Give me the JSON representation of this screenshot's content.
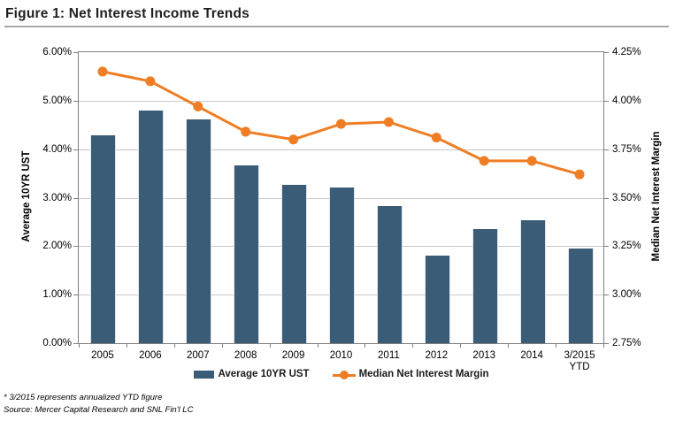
{
  "header": {
    "title": "Figure 1: Net Interest Income Trends"
  },
  "legend": {
    "bar_label": "Average 10YR UST",
    "line_label": "Median Net Interest Margin"
  },
  "footnotes": {
    "note": "* 3/2015 represents annualized YTD figure",
    "source": "Source: Mercer Capital Research and SNL Fin'l LC"
  },
  "colors": {
    "bar": "#3b5c77",
    "line": "#ef7d23",
    "gridline": "#c9c9c9",
    "axis": "#7f7f7f"
  },
  "chart_data": {
    "type": "bar",
    "subtype": "combo-bar-line-dual-axis",
    "title": "Figure 1: Net Interest Income Trends",
    "categories": [
      "2005",
      "2006",
      "2007",
      "2008",
      "2009",
      "2010",
      "2011",
      "2012",
      "2013",
      "2014",
      "3/2015\nYTD"
    ],
    "series": [
      {
        "name": "Average 10YR UST",
        "type": "bar",
        "axis": "left",
        "color": "#3b5c77",
        "values": [
          4.29,
          4.79,
          4.62,
          3.67,
          3.26,
          3.21,
          2.82,
          1.81,
          2.35,
          2.54,
          1.96
        ]
      },
      {
        "name": "Median Net Interest Margin",
        "type": "line",
        "axis": "right",
        "color": "#ef7d23",
        "values": [
          4.15,
          4.1,
          3.97,
          3.84,
          3.8,
          3.88,
          3.89,
          3.81,
          3.69,
          3.69,
          3.62
        ]
      }
    ],
    "left_axis": {
      "label": "Average 10YR UST",
      "min": 0,
      "max": 6,
      "tick_values": [
        6,
        5,
        4,
        3,
        2,
        1,
        0
      ],
      "tick_labels": [
        "6.00%",
        "5.00%",
        "4.00%",
        "3.00%",
        "2.00%",
        "1.00%",
        "0.00%"
      ]
    },
    "right_axis": {
      "label": "Median Net Interest Margin",
      "min": 2.75,
      "max": 4.25,
      "tick_values": [
        4.25,
        4.0,
        3.75,
        3.5,
        3.25,
        3.0,
        2.75
      ],
      "tick_labels": [
        "4.25%",
        "4.00%",
        "3.75%",
        "3.50%",
        "3.25%",
        "3.00%",
        "2.75%"
      ]
    },
    "grid": "horizontal",
    "legend_position": "bottom"
  }
}
